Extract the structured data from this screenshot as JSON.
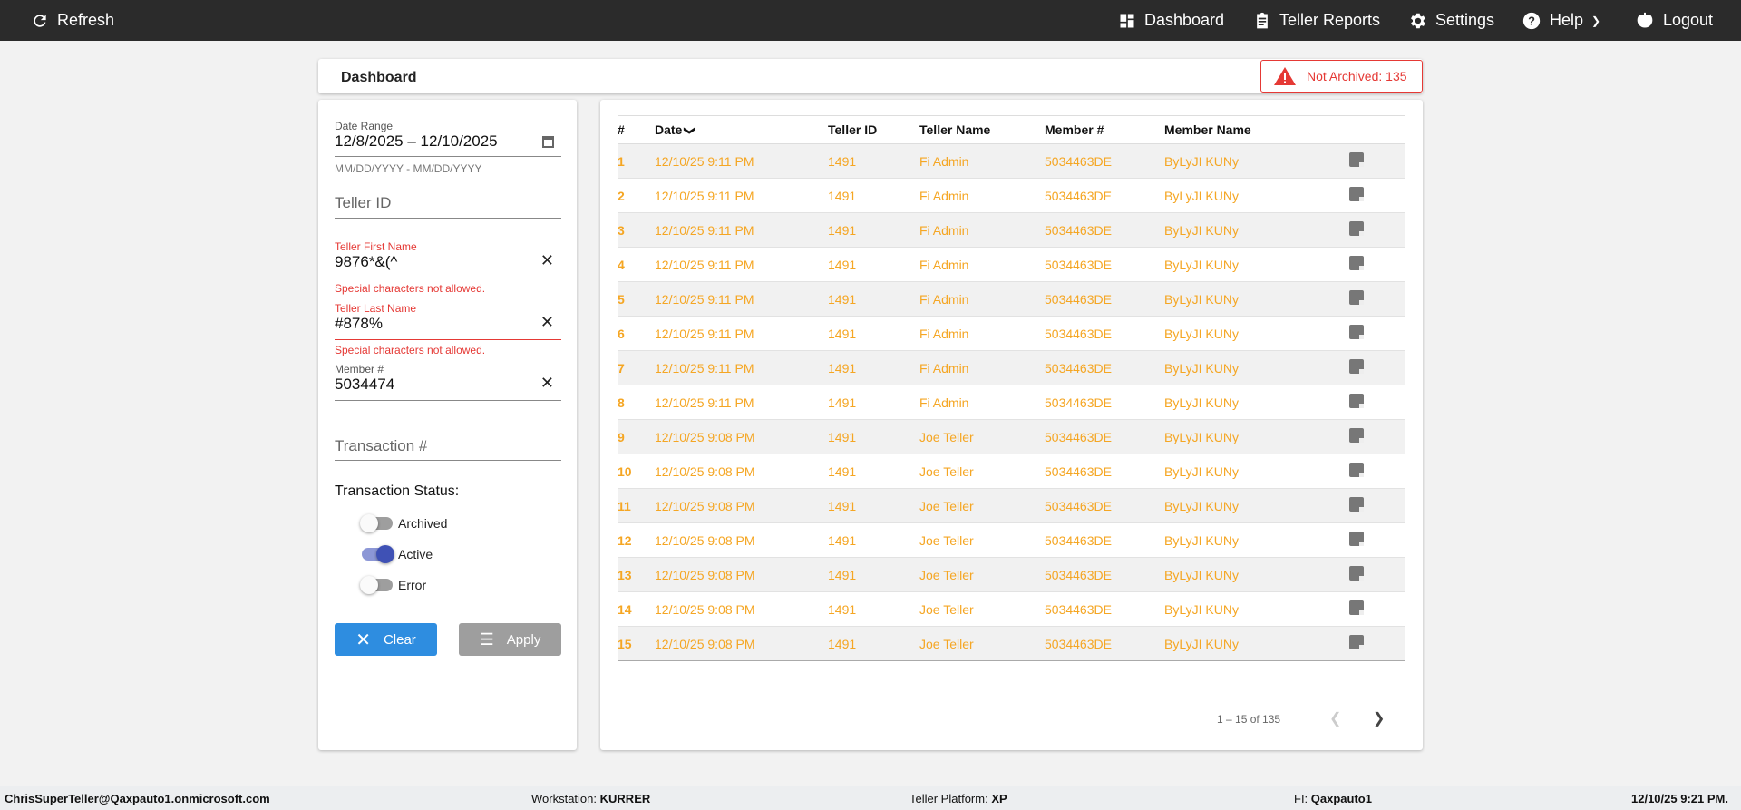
{
  "topbar": {
    "refresh": "Refresh",
    "dashboard": "Dashboard",
    "teller_reports": "Teller Reports",
    "settings": "Settings",
    "help": "Help",
    "logout": "Logout"
  },
  "page": {
    "title": "Dashboard",
    "badge": "Not Archived: 135"
  },
  "filters": {
    "date_range_label": "Date Range",
    "date_range_value": "12/8/2025 – 12/10/2025",
    "date_hint": "MM/DD/YYYY - MM/DD/YYYY",
    "teller_id_placeholder": "Teller ID",
    "first_name_label": "Teller First Name",
    "first_name_value": "9876*&(^",
    "first_name_error": "Special characters not allowed.",
    "last_name_label": "Teller Last Name",
    "last_name_value": "#878%",
    "last_name_error": "Special characters not allowed.",
    "member_label": "Member #",
    "member_value": "5034474",
    "transaction_placeholder": "Transaction #",
    "status_label": "Transaction Status:",
    "toggles": [
      {
        "label": "Archived",
        "on": false
      },
      {
        "label": "Active",
        "on": true
      },
      {
        "label": "Error",
        "on": false
      }
    ],
    "clear": "Clear",
    "apply": "Apply"
  },
  "table": {
    "headers": [
      "#",
      "Date",
      "Teller ID",
      "Teller Name",
      "Member #",
      "Member Name"
    ],
    "rows": [
      [
        "1",
        "12/10/25 9:11 PM",
        "1491",
        "Fi Admin",
        "5034463DE",
        "ByLyJI KUNy"
      ],
      [
        "2",
        "12/10/25 9:11 PM",
        "1491",
        "Fi Admin",
        "5034463DE",
        "ByLyJI KUNy"
      ],
      [
        "3",
        "12/10/25 9:11 PM",
        "1491",
        "Fi Admin",
        "5034463DE",
        "ByLyJI KUNy"
      ],
      [
        "4",
        "12/10/25 9:11 PM",
        "1491",
        "Fi Admin",
        "5034463DE",
        "ByLyJI KUNy"
      ],
      [
        "5",
        "12/10/25 9:11 PM",
        "1491",
        "Fi Admin",
        "5034463DE",
        "ByLyJI KUNy"
      ],
      [
        "6",
        "12/10/25 9:11 PM",
        "1491",
        "Fi Admin",
        "5034463DE",
        "ByLyJI KUNy"
      ],
      [
        "7",
        "12/10/25 9:11 PM",
        "1491",
        "Fi Admin",
        "5034463DE",
        "ByLyJI KUNy"
      ],
      [
        "8",
        "12/10/25 9:11 PM",
        "1491",
        "Fi Admin",
        "5034463DE",
        "ByLyJI KUNy"
      ],
      [
        "9",
        "12/10/25 9:08 PM",
        "1491",
        "Joe Teller",
        "5034463DE",
        "ByLyJI KUNy"
      ],
      [
        "10",
        "12/10/25 9:08 PM",
        "1491",
        "Joe Teller",
        "5034463DE",
        "ByLyJI KUNy"
      ],
      [
        "11",
        "12/10/25 9:08 PM",
        "1491",
        "Joe Teller",
        "5034463DE",
        "ByLyJI KUNy"
      ],
      [
        "12",
        "12/10/25 9:08 PM",
        "1491",
        "Joe Teller",
        "5034463DE",
        "ByLyJI KUNy"
      ],
      [
        "13",
        "12/10/25 9:08 PM",
        "1491",
        "Joe Teller",
        "5034463DE",
        "ByLyJI KUNy"
      ],
      [
        "14",
        "12/10/25 9:08 PM",
        "1491",
        "Joe Teller",
        "5034463DE",
        "ByLyJI KUNy"
      ],
      [
        "15",
        "12/10/25 9:08 PM",
        "1491",
        "Joe Teller",
        "5034463DE",
        "ByLyJI KUNy"
      ]
    ],
    "pagination": "1 – 15 of 135"
  },
  "footer": {
    "user": "ChrisSuperTeller@Qaxpauto1.onmicrosoft.com",
    "workstation_label": "Workstation:",
    "workstation": "KURRER",
    "platform_label": "Teller Platform:",
    "platform": "XP",
    "fi_label": "FI:",
    "fi": "Qaxpauto1",
    "datetime": "12/10/25 9:21 PM."
  },
  "colors": {
    "accent": "#f5a623",
    "error": "#e53935",
    "clear_button": "#2e8de0",
    "apply_button": "#9e9e9e",
    "toggle_on": "#3f51b5"
  }
}
